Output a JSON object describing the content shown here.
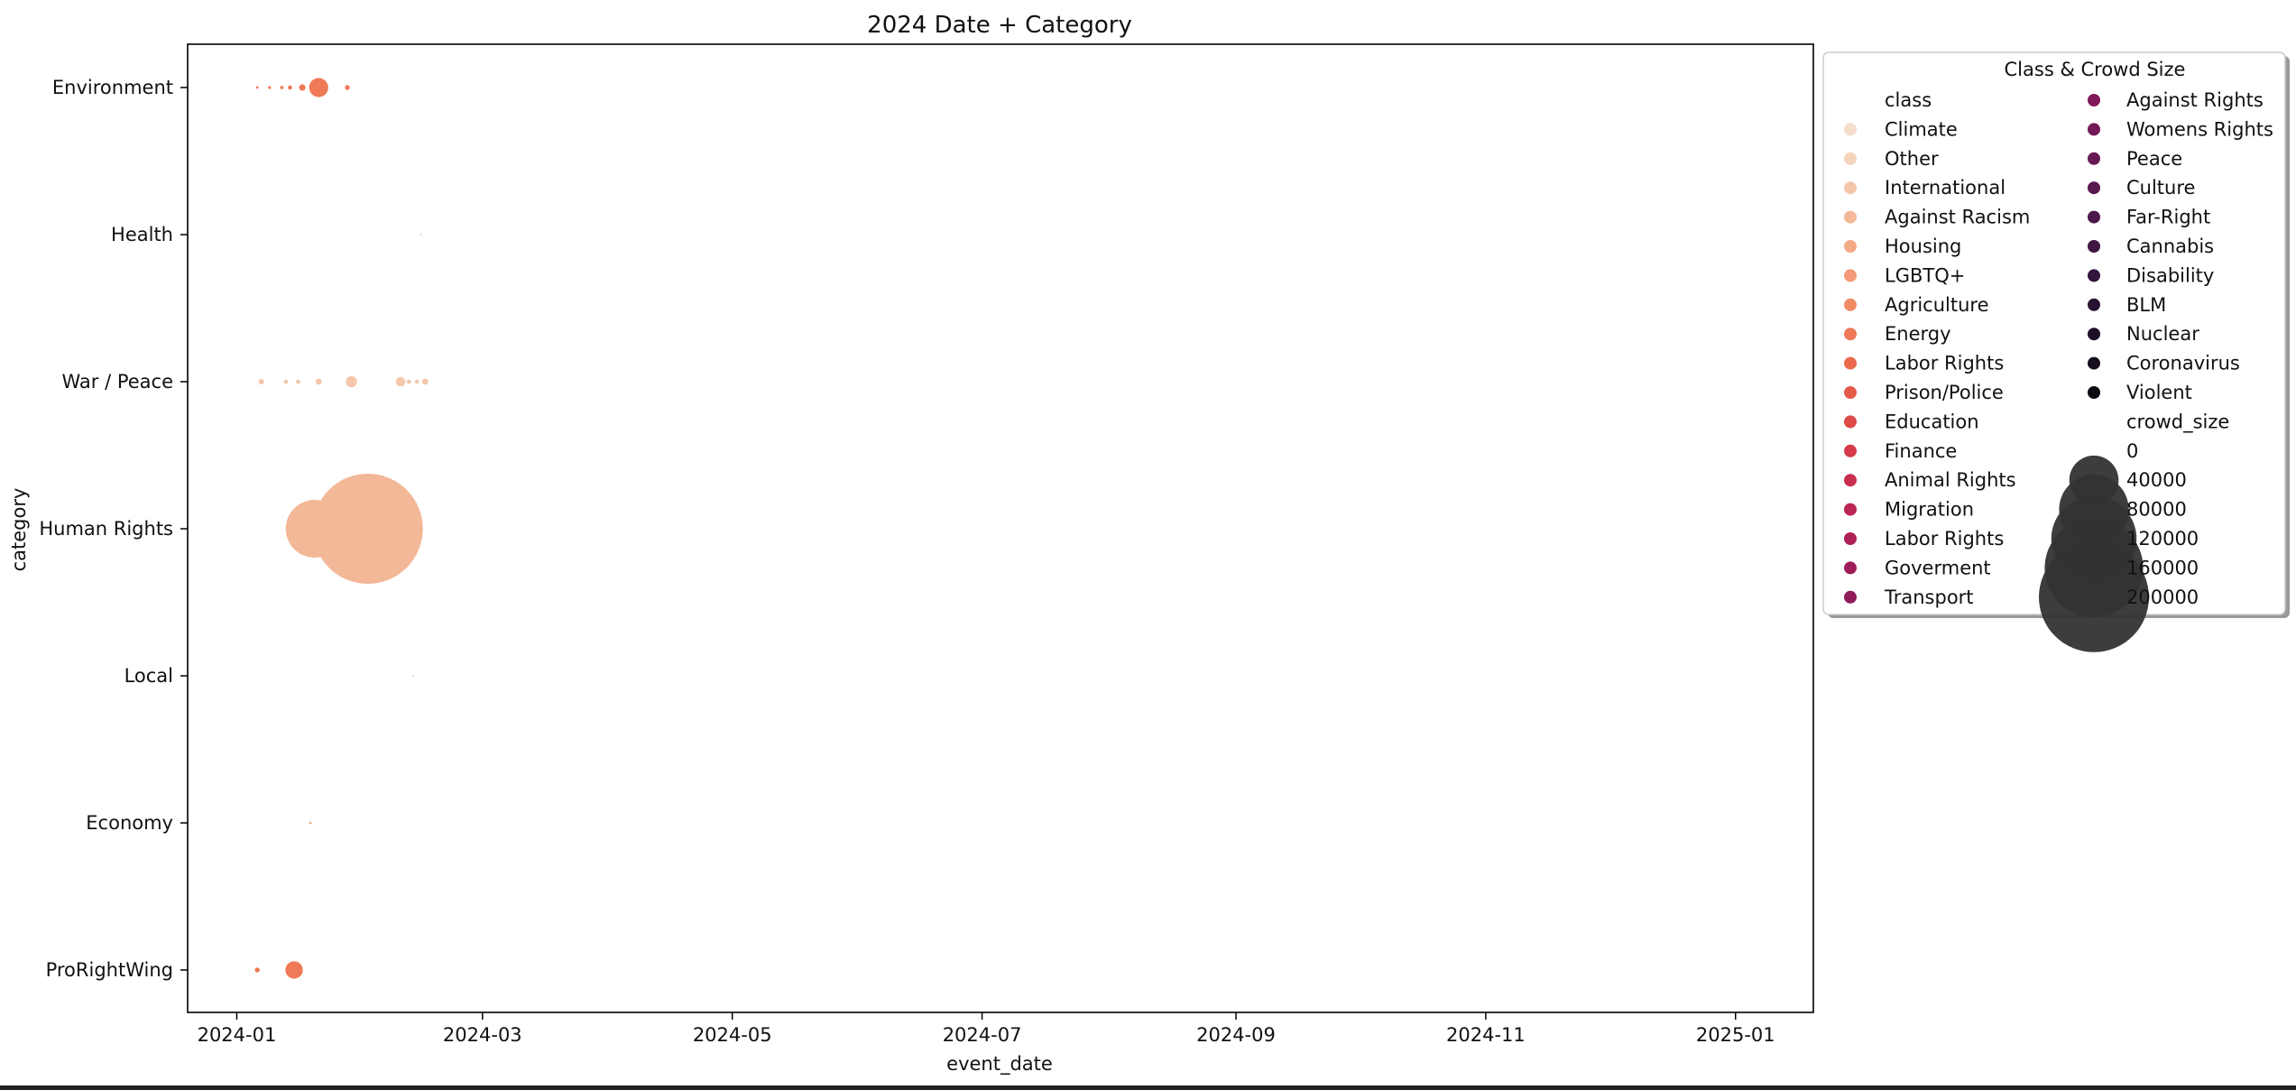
{
  "chart_data": {
    "type": "scatter",
    "title": "2024 Date + Category",
    "xlabel": "event_date",
    "ylabel": "category",
    "x_ticks": [
      "2024-01",
      "2024-03",
      "2024-05",
      "2024-07",
      "2024-09",
      "2024-11",
      "2025-01"
    ],
    "x_tick_dates": [
      "2024-01-01",
      "2024-03-01",
      "2024-05-01",
      "2024-07-01",
      "2024-09-01",
      "2024-11-01",
      "2025-01-01"
    ],
    "xlim": [
      "2023-12-20",
      "2025-01-20"
    ],
    "categories": [
      "Environment",
      "Health",
      "War / Peace",
      "Human Rights",
      "Local",
      "Economy",
      "ProRightWing"
    ],
    "grid": false,
    "legend": {
      "title": "Class & Crowd Size",
      "placement": "outside-right",
      "class_header": "class",
      "size_header": "crowd_size",
      "classes": [
        {
          "name": "Climate",
          "color": "#f6dccb"
        },
        {
          "name": "Other",
          "color": "#f5d2bc"
        },
        {
          "name": "International",
          "color": "#f4c6aa"
        },
        {
          "name": "Against Racism",
          "color": "#f3b898"
        },
        {
          "name": "Housing",
          "color": "#f3aa86"
        },
        {
          "name": "LGBTQ+",
          "color": "#f29b76"
        },
        {
          "name": "Agriculture",
          "color": "#f18b66"
        },
        {
          "name": "Energy",
          "color": "#ef7a57"
        },
        {
          "name": "Labor Rights",
          "color": "#eb6a4e"
        },
        {
          "name": "Prison/Police",
          "color": "#e55a48"
        },
        {
          "name": "Education",
          "color": "#de4a47"
        },
        {
          "name": "Finance",
          "color": "#d53a4a"
        },
        {
          "name": "Animal Rights",
          "color": "#c92e4e"
        },
        {
          "name": "Migration",
          "color": "#bb2653"
        },
        {
          "name": "Labor Rights",
          "color": "#ad2156"
        },
        {
          "name": "Goverment",
          "color": "#9e1d58"
        },
        {
          "name": "Transport",
          "color": "#8f1b59"
        },
        {
          "name": "Against Rights",
          "color": "#811a58"
        },
        {
          "name": "Womens Rights",
          "color": "#731956"
        },
        {
          "name": "Peace",
          "color": "#661952"
        },
        {
          "name": "Culture",
          "color": "#59184e"
        },
        {
          "name": "Far-Right",
          "color": "#4c1749"
        },
        {
          "name": "Cannabis",
          "color": "#401642"
        },
        {
          "name": "Disability",
          "color": "#33143a"
        },
        {
          "name": "BLM",
          "color": "#281231"
        },
        {
          "name": "Nuclear",
          "color": "#1e1027"
        },
        {
          "name": "Coronavirus",
          "color": "#150d1d"
        },
        {
          "name": "Violent",
          "color": "#0d0a14"
        }
      ],
      "sizes": [
        {
          "label": "0",
          "value": 0
        },
        {
          "label": "40000",
          "value": 40000
        },
        {
          "label": "80000",
          "value": 80000
        },
        {
          "label": "120000",
          "value": 120000
        },
        {
          "label": "160000",
          "value": 160000
        },
        {
          "label": "200000",
          "value": 200000
        }
      ],
      "size_marker_color": "#333333"
    },
    "points": [
      {
        "date": "2024-01-06",
        "category": "Environment",
        "size": 100,
        "class": "Energy"
      },
      {
        "date": "2024-01-09",
        "category": "Environment",
        "size": 150,
        "class": "Energy"
      },
      {
        "date": "2024-01-12",
        "category": "Environment",
        "size": 200,
        "class": "Energy"
      },
      {
        "date": "2024-01-14",
        "category": "Environment",
        "size": 300,
        "class": "Energy"
      },
      {
        "date": "2024-01-17",
        "category": "Environment",
        "size": 700,
        "class": "Energy"
      },
      {
        "date": "2024-01-21",
        "category": "Environment",
        "size": 6000,
        "class": "Energy"
      },
      {
        "date": "2024-01-28",
        "category": "Environment",
        "size": 400,
        "class": "Energy"
      },
      {
        "date": "2024-02-15",
        "category": "Health",
        "size": 80,
        "class": "Climate"
      },
      {
        "date": "2024-01-07",
        "category": "War / Peace",
        "size": 500,
        "class": "International"
      },
      {
        "date": "2024-01-13",
        "category": "War / Peace",
        "size": 300,
        "class": "International"
      },
      {
        "date": "2024-01-16",
        "category": "War / Peace",
        "size": 300,
        "class": "International"
      },
      {
        "date": "2024-01-21",
        "category": "War / Peace",
        "size": 600,
        "class": "International"
      },
      {
        "date": "2024-01-29",
        "category": "War / Peace",
        "size": 2000,
        "class": "International"
      },
      {
        "date": "2024-02-10",
        "category": "War / Peace",
        "size": 1500,
        "class": "International"
      },
      {
        "date": "2024-02-12",
        "category": "War / Peace",
        "size": 300,
        "class": "International"
      },
      {
        "date": "2024-02-14",
        "category": "War / Peace",
        "size": 300,
        "class": "International"
      },
      {
        "date": "2024-02-16",
        "category": "War / Peace",
        "size": 600,
        "class": "International"
      },
      {
        "date": "2024-01-17",
        "category": "Human Rights",
        "size": 13000,
        "class": "Against Racism"
      },
      {
        "date": "2024-01-20",
        "category": "Human Rights",
        "size": 55000,
        "class": "Against Racism"
      },
      {
        "date": "2024-02-02",
        "category": "Human Rights",
        "size": 200000,
        "class": "Against Racism"
      },
      {
        "date": "2024-02-13",
        "category": "Local",
        "size": 50,
        "class": "Climate"
      },
      {
        "date": "2024-01-19",
        "category": "Economy",
        "size": 100,
        "class": "Housing"
      },
      {
        "date": "2024-01-06",
        "category": "ProRightWing",
        "size": 400,
        "class": "Energy"
      },
      {
        "date": "2024-01-15",
        "category": "ProRightWing",
        "size": 5000,
        "class": "Energy"
      }
    ]
  }
}
